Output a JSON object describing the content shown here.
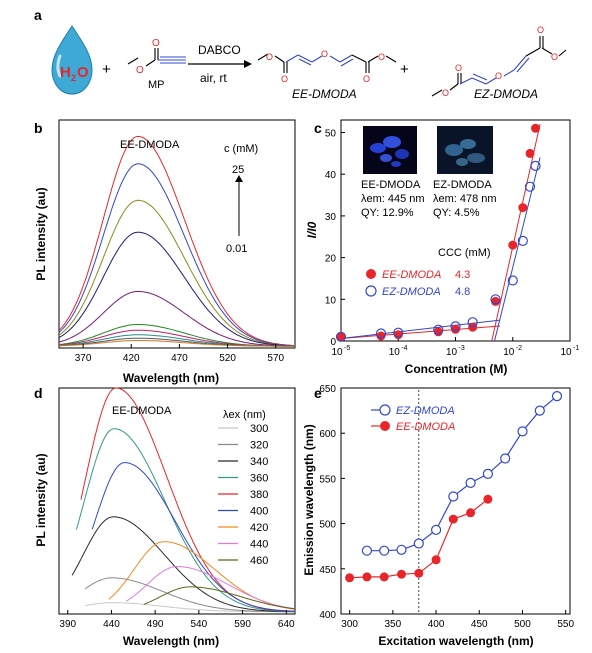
{
  "figure": {
    "panel_a": {
      "label": "a",
      "water": "H",
      "water_sub": "2",
      "water_o": "O",
      "plus1": "+",
      "mp_label": "MP",
      "catalyst": "DABCO",
      "conditions": "air, rt",
      "product1": "EE-DMODA",
      "plus2": "+",
      "product2": "EZ-DMODA"
    },
    "panel_b": {
      "label": "b",
      "title": "EE-DMODA",
      "xlabel": "Wavelength (nm)",
      "ylabel": "PL intensity (au)",
      "conc_header": "c (mM)",
      "conc_top": "25",
      "conc_bottom": "0.01"
    },
    "panel_c": {
      "label": "c",
      "xlabel": "Concentration (M)",
      "ylabel": "I/I0",
      "inset1": {
        "name": "EE-DMODA",
        "lambda": "λem: 445 nm",
        "qy": "QY: 12.9%"
      },
      "inset2": {
        "name": "EZ-DMODA",
        "lambda": "λem: 478 nm",
        "qy": "QY: 4.5%"
      },
      "ccc_header": "CCC (mM)",
      "legend": [
        {
          "name": "EE-DMODA",
          "ccc": "4.3"
        },
        {
          "name": "EZ-DMODA",
          "ccc": "4.8"
        }
      ]
    },
    "panel_d": {
      "label": "d",
      "title": "EE-DMODA",
      "xlabel": "Wavelength (nm)",
      "ylabel": "PL intensity (au)",
      "legend_header": "λex (nm)"
    },
    "panel_e": {
      "label": "e",
      "xlabel": "Excitation wavelength (nm)",
      "ylabel": "Emission wavelength (nm)"
    }
  },
  "colors": {
    "red": "#e8262a",
    "blue": "#3347cc",
    "water_blue": "#3fa9d6"
  },
  "chart_data": [
    {
      "type": "line",
      "panel": "b",
      "title": "EE-DMODA",
      "xlabel": "Wavelength (nm)",
      "ylabel": "PL intensity (au)",
      "xlim": [
        345,
        590
      ],
      "xticks": [
        370,
        420,
        470,
        520,
        570
      ],
      "ylim": [
        0,
        1.0
      ],
      "peak_x": 427,
      "series": [
        {
          "color": "#e8262a",
          "peak": 0.92
        },
        {
          "color": "#3347cc",
          "peak": 0.8
        },
        {
          "color": "#8a8a1e",
          "peak": 0.64
        },
        {
          "color": "#1c1c78",
          "peak": 0.5
        },
        {
          "color": "#7a1b7a",
          "peak": 0.24
        },
        {
          "color": "#1e8a1e",
          "peak": 0.095
        },
        {
          "color": "#c21e6a",
          "peak": 0.07
        },
        {
          "color": "#2a8a8a",
          "peak": 0.05
        },
        {
          "color": "#555555",
          "peak": 0.035
        },
        {
          "color": "#c87a2a",
          "peak": 0.025
        }
      ]
    },
    {
      "type": "scatter",
      "panel": "c",
      "xlabel": "Concentration (M)",
      "ylabel": "I/I0",
      "xscale": "log",
      "xlim": [
        1e-05,
        0.1
      ],
      "xticks": [
        "10-5",
        "10-4",
        "10-3",
        "10-2",
        "10-1"
      ],
      "ylim": [
        0,
        53
      ],
      "yticks": [
        0,
        10,
        20,
        30,
        40,
        50
      ],
      "series": [
        {
          "name": "EE-DMODA",
          "color": "#e8262a",
          "filled": true,
          "x": [
            1e-05,
            5e-05,
            0.0001,
            0.0005,
            0.001,
            0.002,
            0.005,
            0.01,
            0.015,
            0.02,
            0.025
          ],
          "y": [
            1,
            1.2,
            1.5,
            2.2,
            2.8,
            3.3,
            9.5,
            23,
            32,
            45,
            51
          ]
        },
        {
          "name": "EZ-DMODA",
          "color": "#3347cc",
          "filled": false,
          "x": [
            1e-05,
            5e-05,
            0.0001,
            0.0005,
            0.001,
            0.002,
            0.005,
            0.01,
            0.015,
            0.02,
            0.025
          ],
          "y": [
            1,
            1.8,
            2,
            2.7,
            3.5,
            4.5,
            10,
            14.5,
            24,
            37,
            42
          ]
        }
      ]
    },
    {
      "type": "line",
      "panel": "d",
      "title": "EE-DMODA",
      "xlabel": "Wavelength (nm)",
      "ylabel": "PL intensity (au)",
      "xlim": [
        380,
        650
      ],
      "xticks": [
        390,
        440,
        490,
        540,
        590,
        640
      ],
      "ylim": [
        0,
        1.0
      ],
      "legend_title": "λex (nm)",
      "series": [
        {
          "name": "300",
          "color": "#c8c8c8",
          "peak": 0.04,
          "peak_x": 440,
          "start": 410
        },
        {
          "name": "320",
          "color": "#8a8a8a",
          "peak": 0.15,
          "peak_x": 440,
          "start": 410
        },
        {
          "name": "340",
          "color": "#2a2a2a",
          "peak": 0.42,
          "peak_x": 442,
          "start": 395
        },
        {
          "name": "360",
          "color": "#2f9a8a",
          "peak": 0.81,
          "peak_x": 443,
          "start": 400
        },
        {
          "name": "380",
          "color": "#e8262a",
          "peak": 0.99,
          "peak_x": 445,
          "start": 405
        },
        {
          "name": "400",
          "color": "#3347cc",
          "peak": 0.66,
          "peak_x": 455,
          "start": 418
        },
        {
          "name": "420",
          "color": "#f08a1a",
          "peak": 0.31,
          "peak_x": 500,
          "start": 437
        },
        {
          "name": "440",
          "color": "#e07ae0",
          "peak": 0.2,
          "peak_x": 515,
          "start": 457
        },
        {
          "name": "460",
          "color": "#5a6a1a",
          "peak": 0.11,
          "peak_x": 530,
          "start": 477
        }
      ]
    },
    {
      "type": "line",
      "panel": "e",
      "xlabel": "Excitation wavelength (nm)",
      "ylabel": "Emission wavelength (nm)",
      "xlim": [
        290,
        555
      ],
      "xticks": [
        300,
        350,
        400,
        450,
        500,
        550
      ],
      "ylim": [
        400,
        650
      ],
      "yticks": [
        400,
        450,
        500,
        550,
        600,
        650
      ],
      "vline_x": 380,
      "series": [
        {
          "name": "EZ-DMODA",
          "color": "#3347cc",
          "filled": false,
          "x": [
            320,
            340,
            360,
            380,
            400,
            420,
            440,
            460,
            480,
            500,
            520,
            540
          ],
          "y": [
            470,
            470,
            471,
            478,
            493,
            530,
            545,
            555,
            572,
            602,
            625,
            641
          ]
        },
        {
          "name": "EE-DMODA",
          "color": "#e8262a",
          "filled": true,
          "x": [
            300,
            320,
            340,
            360,
            380,
            400,
            420,
            440,
            460
          ],
          "y": [
            440,
            441,
            441,
            444,
            445,
            460,
            505,
            512,
            527
          ]
        }
      ]
    }
  ]
}
